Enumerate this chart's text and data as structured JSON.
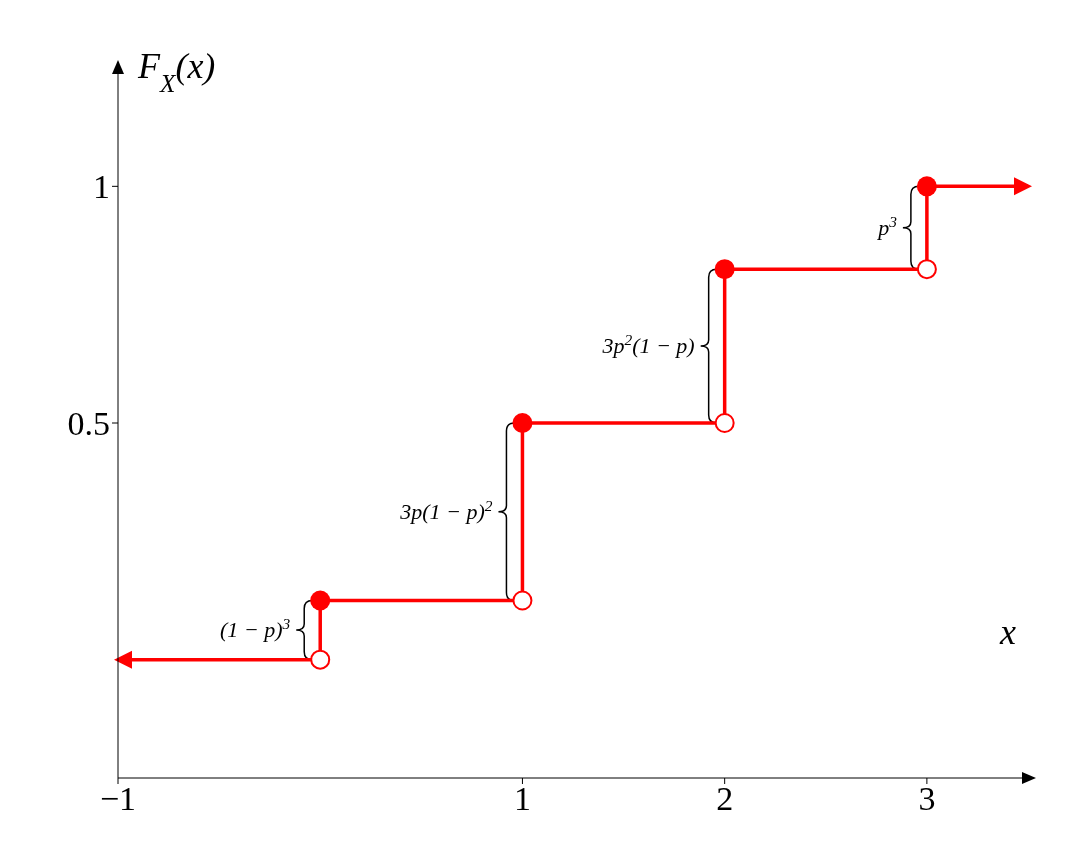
{
  "chart_data": {
    "type": "step",
    "xlabel": "x",
    "ylabel": "F$_{X}$(x)",
    "x": [
      -1,
      0,
      1,
      2,
      3,
      3.5
    ],
    "series": [
      {
        "color": "#ff0000",
        "values": [
          0,
          0.125,
          0.5,
          0.825,
          1,
          1
        ]
      }
    ],
    "xlim": [
      -1,
      3.5
    ],
    "ylim": [
      -0.25,
      1.25
    ],
    "xticks": [
      -1,
      1,
      2,
      3
    ],
    "yticks": [
      0.5,
      1
    ],
    "marker": "circle",
    "line_style": "solid",
    "grid": false,
    "legend": false,
    "annotations": [
      {
        "text": "(1 − p)$^{3}$",
        "x": 0,
        "y": 0.0625
      },
      {
        "text": "3p(1 − p)$^{2}$",
        "x": 1,
        "y": 0.3125
      },
      {
        "text": "3p$^{2}$(1 − p)",
        "x": 2,
        "y": 0.6625
      },
      {
        "text": "p$^{3}$",
        "x": 3,
        "y": 0.9125
      }
    ]
  }
}
